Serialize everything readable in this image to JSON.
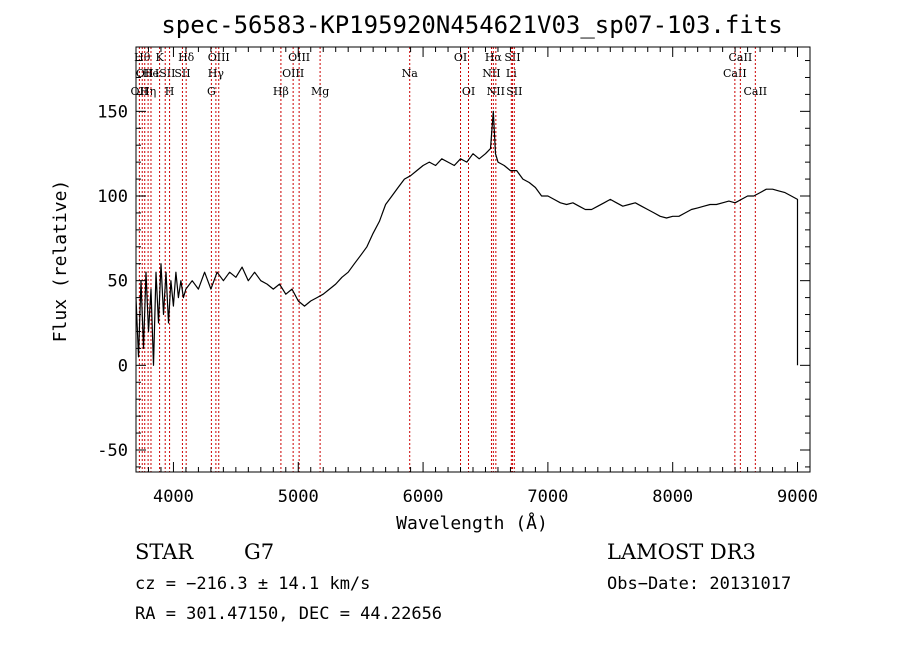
{
  "chart_data": {
    "type": "line",
    "title": "spec-56583-KP195920N454621V03_sp07-103.fits",
    "xlabel": "Wavelength (Å)",
    "ylabel": "Flux (relative)",
    "xlim": [
      3700,
      9100
    ],
    "ylim": [
      -63,
      188
    ],
    "xticks": [
      4000,
      5000,
      6000,
      7000,
      8000,
      9000
    ],
    "yticks": [
      -50,
      0,
      50,
      100,
      150
    ],
    "line_color": "#000000",
    "marker_color": "#cc0000",
    "grid": false,
    "series": [
      {
        "values": [
          [
            3700,
            40
          ],
          [
            3720,
            5
          ],
          [
            3740,
            50
          ],
          [
            3760,
            10
          ],
          [
            3780,
            55
          ],
          [
            3800,
            20
          ],
          [
            3820,
            45
          ],
          [
            3840,
            0
          ],
          [
            3860,
            55
          ],
          [
            3880,
            25
          ],
          [
            3900,
            60
          ],
          [
            3920,
            30
          ],
          [
            3940,
            55
          ],
          [
            3960,
            25
          ],
          [
            3980,
            50
          ],
          [
            4000,
            35
          ],
          [
            4020,
            55
          ],
          [
            4040,
            40
          ],
          [
            4060,
            50
          ],
          [
            4080,
            40
          ],
          [
            4100,
            45
          ],
          [
            4150,
            50
          ],
          [
            4200,
            45
          ],
          [
            4250,
            55
          ],
          [
            4300,
            45
          ],
          [
            4350,
            55
          ],
          [
            4400,
            50
          ],
          [
            4450,
            55
          ],
          [
            4500,
            52
          ],
          [
            4550,
            58
          ],
          [
            4600,
            50
          ],
          [
            4650,
            55
          ],
          [
            4700,
            50
          ],
          [
            4750,
            48
          ],
          [
            4800,
            45
          ],
          [
            4850,
            48
          ],
          [
            4900,
            42
          ],
          [
            4950,
            45
          ],
          [
            5000,
            38
          ],
          [
            5050,
            35
          ],
          [
            5100,
            38
          ],
          [
            5150,
            40
          ],
          [
            5200,
            42
          ],
          [
            5250,
            45
          ],
          [
            5300,
            48
          ],
          [
            5350,
            52
          ],
          [
            5400,
            55
          ],
          [
            5450,
            60
          ],
          [
            5500,
            65
          ],
          [
            5550,
            70
          ],
          [
            5600,
            78
          ],
          [
            5650,
            85
          ],
          [
            5700,
            95
          ],
          [
            5750,
            100
          ],
          [
            5800,
            105
          ],
          [
            5850,
            110
          ],
          [
            5900,
            112
          ],
          [
            5950,
            115
          ],
          [
            6000,
            118
          ],
          [
            6050,
            120
          ],
          [
            6100,
            118
          ],
          [
            6150,
            122
          ],
          [
            6200,
            120
          ],
          [
            6250,
            118
          ],
          [
            6300,
            122
          ],
          [
            6350,
            120
          ],
          [
            6400,
            125
          ],
          [
            6450,
            122
          ],
          [
            6500,
            125
          ],
          [
            6540,
            128
          ],
          [
            6563,
            150
          ],
          [
            6580,
            125
          ],
          [
            6600,
            120
          ],
          [
            6650,
            118
          ],
          [
            6700,
            115
          ],
          [
            6750,
            115
          ],
          [
            6800,
            110
          ],
          [
            6850,
            108
          ],
          [
            6900,
            105
          ],
          [
            6950,
            100
          ],
          [
            7000,
            100
          ],
          [
            7050,
            98
          ],
          [
            7100,
            96
          ],
          [
            7150,
            95
          ],
          [
            7200,
            96
          ],
          [
            7250,
            94
          ],
          [
            7300,
            92
          ],
          [
            7350,
            92
          ],
          [
            7400,
            94
          ],
          [
            7450,
            96
          ],
          [
            7500,
            98
          ],
          [
            7550,
            96
          ],
          [
            7600,
            94
          ],
          [
            7650,
            95
          ],
          [
            7700,
            96
          ],
          [
            7750,
            94
          ],
          [
            7800,
            92
          ],
          [
            7850,
            90
          ],
          [
            7900,
            88
          ],
          [
            7950,
            87
          ],
          [
            8000,
            88
          ],
          [
            8050,
            88
          ],
          [
            8100,
            90
          ],
          [
            8150,
            92
          ],
          [
            8200,
            93
          ],
          [
            8250,
            94
          ],
          [
            8300,
            95
          ],
          [
            8350,
            95
          ],
          [
            8400,
            96
          ],
          [
            8450,
            97
          ],
          [
            8500,
            96
          ],
          [
            8550,
            98
          ],
          [
            8600,
            100
          ],
          [
            8650,
            100
          ],
          [
            8700,
            102
          ],
          [
            8750,
            104
          ],
          [
            8800,
            104
          ],
          [
            8850,
            103
          ],
          [
            8900,
            102
          ],
          [
            8950,
            100
          ],
          [
            9000,
            98
          ],
          [
            9000,
            0
          ]
        ]
      }
    ],
    "line_markers": [
      {
        "wavelength": 3727,
        "labels": [
          "OII"
        ],
        "row": 3
      },
      {
        "wavelength": 3750,
        "labels": [
          "Hθ"
        ],
        "row": 1
      },
      {
        "wavelength": 3770,
        "labels": [
          "OII"
        ],
        "row": 2
      },
      {
        "wavelength": 3797,
        "labels": [
          "Hη"
        ],
        "row": 3
      },
      {
        "wavelength": 3820,
        "labels": [
          "He"
        ],
        "row": 2
      },
      {
        "wavelength": 3889,
        "labels": [
          "K"
        ],
        "row": 1
      },
      {
        "wavelength": 3934,
        "labels": [
          "ISII"
        ],
        "row": 2
      },
      {
        "wavelength": 3969,
        "labels": [
          "H"
        ],
        "row": 3
      },
      {
        "wavelength": 4072,
        "labels": [
          "SII"
        ],
        "row": 2
      },
      {
        "wavelength": 4102,
        "labels": [
          "Hδ"
        ],
        "row": 1
      },
      {
        "wavelength": 4304,
        "labels": [
          "G"
        ],
        "row": 3
      },
      {
        "wavelength": 4340,
        "labels": [
          "Hγ"
        ],
        "row": 2
      },
      {
        "wavelength": 4363,
        "labels": [
          "OIII"
        ],
        "row": 1
      },
      {
        "wavelength": 4861,
        "labels": [
          "Hβ"
        ],
        "row": 3
      },
      {
        "wavelength": 4959,
        "labels": [
          "OIII"
        ],
        "row": 2
      },
      {
        "wavelength": 5007,
        "labels": [
          "OIII"
        ],
        "row": 1
      },
      {
        "wavelength": 5175,
        "labels": [
          "Mg"
        ],
        "row": 3
      },
      {
        "wavelength": 5893,
        "labels": [
          "Na"
        ],
        "row": 2
      },
      {
        "wavelength": 6300,
        "labels": [
          "OI"
        ],
        "row": 1
      },
      {
        "wavelength": 6364,
        "labels": [
          "OI"
        ],
        "row": 3
      },
      {
        "wavelength": 6548,
        "labels": [
          "NII"
        ],
        "row": 2
      },
      {
        "wavelength": 6563,
        "labels": [
          "Hα"
        ],
        "row": 1
      },
      {
        "wavelength": 6583,
        "labels": [
          "NII"
        ],
        "row": 3
      },
      {
        "wavelength": 6707,
        "labels": [
          "Li"
        ],
        "row": 2
      },
      {
        "wavelength": 6716,
        "labels": [
          "SII"
        ],
        "row": 1
      },
      {
        "wavelength": 6731,
        "labels": [
          "SII"
        ],
        "row": 3
      },
      {
        "wavelength": 8498,
        "labels": [
          "CaII"
        ],
        "row": 2
      },
      {
        "wavelength": 8542,
        "labels": [
          "CaII"
        ],
        "row": 1
      },
      {
        "wavelength": 8662,
        "labels": [
          "CaII"
        ],
        "row": 3
      }
    ]
  },
  "info": {
    "object_class": "STAR",
    "subclass": "G7",
    "survey": "LAMOST DR3",
    "cz_text": "cz = −216.3 ± 14.1 km/s",
    "obs_date_text": "Obs−Date: 20131017",
    "coords_text": "RA = 301.47150, DEC =  44.22656"
  }
}
